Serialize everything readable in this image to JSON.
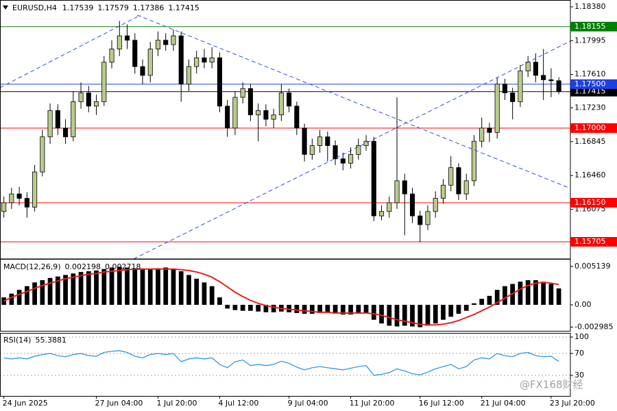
{
  "chart_data": [
    {
      "type": "candlestick",
      "title": "EURUSD,H4",
      "open": [
        1.1605,
        1.1615,
        1.1625,
        1.162,
        1.161,
        1.165,
        1.169,
        1.172,
        1.17,
        1.169,
        1.173,
        1.174,
        1.1725,
        1.173,
        1.1775,
        1.179,
        1.1805,
        1.18,
        1.177,
        1.176,
        1.179,
        1.18,
        1.1795,
        1.1805,
        1.175,
        1.177,
        1.178,
        1.1775,
        1.178,
        1.1725,
        1.17,
        1.1735,
        1.1745,
        1.1715,
        1.172,
        1.171,
        1.1715,
        1.174,
        1.1725,
        1.17,
        1.167,
        1.168,
        1.169,
        1.168,
        1.1665,
        1.166,
        1.167,
        1.168,
        1.1685,
        1.16,
        1.1605,
        1.1615,
        1.164,
        1.1625,
        1.16,
        1.159,
        1.1605,
        1.162,
        1.1635,
        1.1655,
        1.1625,
        1.164,
        1.1685,
        1.17,
        1.1695,
        1.175,
        1.174,
        1.173,
        1.1765,
        1.1775,
        1.176,
        1.1755,
        1.17539
      ],
      "high": [
        1.1622,
        1.1632,
        1.1633,
        1.1627,
        1.1658,
        1.1698,
        1.1728,
        1.1727,
        1.171,
        1.1742,
        1.1752,
        1.1748,
        1.1738,
        1.1782,
        1.18,
        1.1822,
        1.1818,
        1.1808,
        1.1778,
        1.1798,
        1.181,
        1.1808,
        1.1812,
        1.181,
        1.1778,
        1.1788,
        1.179,
        1.1792,
        1.1786,
        1.1732,
        1.1742,
        1.1752,
        1.175,
        1.1728,
        1.1727,
        1.1722,
        1.175,
        1.1745,
        1.173,
        1.1705,
        1.1688,
        1.1698,
        1.1696,
        1.1686,
        1.1672,
        1.1678,
        1.1688,
        1.1692,
        1.169,
        1.1612,
        1.1622,
        1.1735,
        1.1648,
        1.1632,
        1.1606,
        1.1612,
        1.1628,
        1.1642,
        1.1668,
        1.166,
        1.1648,
        1.1692,
        1.1712,
        1.1706,
        1.1758,
        1.1756,
        1.1746,
        1.1772,
        1.1782,
        1.1785,
        1.179,
        1.1768,
        1.17579
      ],
      "low": [
        1.1598,
        1.1608,
        1.1612,
        1.1598,
        1.1605,
        1.1645,
        1.1682,
        1.1692,
        1.1682,
        1.1685,
        1.1722,
        1.1718,
        1.1715,
        1.1725,
        1.1768,
        1.1782,
        1.179,
        1.1762,
        1.175,
        1.1752,
        1.1782,
        1.1788,
        1.1788,
        1.173,
        1.1742,
        1.1762,
        1.1768,
        1.1768,
        1.1718,
        1.169,
        1.1692,
        1.1728,
        1.1708,
        1.1685,
        1.1702,
        1.17,
        1.1708,
        1.1718,
        1.1692,
        1.1662,
        1.1664,
        1.1672,
        1.1662,
        1.1658,
        1.1652,
        1.1654,
        1.1664,
        1.1674,
        1.1594,
        1.1595,
        1.1598,
        1.1608,
        1.1578,
        1.1592,
        1.157,
        1.1584,
        1.1598,
        1.1614,
        1.1628,
        1.1618,
        1.1618,
        1.1634,
        1.1678,
        1.1684,
        1.1688,
        1.1732,
        1.171,
        1.1724,
        1.1758,
        1.1752,
        1.1732,
        1.1735,
        1.17386
      ],
      "close": [
        1.1615,
        1.1625,
        1.162,
        1.161,
        1.165,
        1.169,
        1.172,
        1.17,
        1.169,
        1.173,
        1.174,
        1.1725,
        1.173,
        1.1775,
        1.179,
        1.1805,
        1.18,
        1.177,
        1.176,
        1.179,
        1.18,
        1.1795,
        1.1805,
        1.175,
        1.177,
        1.178,
        1.1775,
        1.178,
        1.1725,
        1.17,
        1.1735,
        1.1745,
        1.1715,
        1.172,
        1.171,
        1.1715,
        1.174,
        1.1725,
        1.17,
        1.167,
        1.168,
        1.169,
        1.168,
        1.1665,
        1.166,
        1.167,
        1.168,
        1.1685,
        1.16,
        1.1605,
        1.1615,
        1.164,
        1.1625,
        1.16,
        1.159,
        1.1605,
        1.162,
        1.1635,
        1.1655,
        1.1625,
        1.164,
        1.1685,
        1.17,
        1.1695,
        1.175,
        1.174,
        1.173,
        1.1765,
        1.1775,
        1.176,
        1.1755,
        1.17539,
        1.17415
      ],
      "up_color": "#b9cc8c",
      "down_color": "#000000",
      "xlim": [
        -0.5,
        73.5
      ],
      "xticks": [
        {
          "value": 0,
          "label": "24 Jun 2025"
        },
        {
          "value": 12,
          "label": "27 Jun 04:00"
        },
        {
          "value": 20,
          "label": "1 Jul 20:00"
        },
        {
          "value": 28,
          "label": "4 Jul 12:00"
        },
        {
          "value": 37,
          "label": "9 Jul 04:00"
        },
        {
          "value": 45,
          "label": "11 Jul 20:00"
        },
        {
          "value": 54,
          "label": "16 Jul 12:00"
        },
        {
          "value": 62,
          "label": "21 Jul 04:00"
        },
        {
          "value": 71,
          "label": "23 Jul 20:00"
        }
      ],
      "ylim": [
        1.1551,
        1.18458
      ],
      "yticks": [
        {
          "value": 1.1838,
          "label": "1.18380"
        },
        1.17995,
        {
          "value": 1.1761,
          "label": "1.17610"
        },
        {
          "value": 1.1723,
          "label": "1.17230"
        },
        1.16845,
        {
          "value": 1.1646,
          "label": "1.16460"
        },
        1.16075
      ],
      "levels": [
        {
          "value": 1.17415,
          "label": "1.17415",
          "color": "#000000"
        },
        {
          "value": 1.18155,
          "label": "1.18155",
          "color": "#008000"
        },
        {
          "value": 1.175,
          "label": "1.17500",
          "color": "#1f3fe0"
        },
        {
          "value": 1.17,
          "label": "1.17000",
          "color": "#ff0000"
        },
        {
          "value": 1.1615,
          "label": "1.16150",
          "color": "#ff0000"
        },
        {
          "value": 1.15705,
          "label": "1.15705",
          "color": "#ff0000"
        }
      ]
    },
    {
      "type": "macd",
      "title": "MACD(12,26,9)",
      "values": [
        0.001,
        0.0015,
        0.002,
        0.0025,
        0.003,
        0.0033,
        0.0036,
        0.0038,
        0.004,
        0.0042,
        0.0044,
        0.0045,
        0.0046,
        0.0048,
        0.005,
        0.0051,
        0.005,
        0.0049,
        0.0048,
        0.0048,
        0.0049,
        0.005,
        0.0048,
        0.0045,
        0.004,
        0.0035,
        0.003,
        0.0025,
        0.001,
        -0.0005,
        -0.0007,
        -0.0008,
        -0.0008,
        -0.0009,
        -0.001,
        -0.001,
        -0.0009,
        -0.001,
        -0.0011,
        -0.0012,
        -0.0012,
        -0.0011,
        -0.0011,
        -0.0012,
        -0.0013,
        -0.0013,
        -0.0012,
        -0.0011,
        -0.002,
        -0.0025,
        -0.0028,
        -0.0029,
        -0.0028,
        -0.0029,
        -0.003,
        -0.0028,
        -0.0025,
        -0.002,
        -0.0016,
        -0.0012,
        -0.0008,
        0.0002,
        0.0008,
        0.0012,
        0.002,
        0.0025,
        0.0028,
        0.0031,
        0.0033,
        0.0033,
        0.0031,
        0.0028,
        0.002198
      ],
      "signal_values": [
        0.0005,
        0.001,
        0.0014,
        0.0018,
        0.0022,
        0.0026,
        0.0029,
        0.0032,
        0.0035,
        0.0037,
        0.0039,
        0.0041,
        0.0042,
        0.0044,
        0.0045,
        0.0046,
        0.0047,
        0.0048,
        0.0048,
        0.0048,
        0.0048,
        0.0048,
        0.0048,
        0.0047,
        0.0046,
        0.0044,
        0.0041,
        0.0037,
        0.0031,
        0.0024,
        0.0017,
        0.0011,
        0.0006,
        0.0002,
        -0.0001,
        -0.0003,
        -0.0005,
        -0.0006,
        -0.0007,
        -0.0008,
        -0.0009,
        -0.001,
        -0.001,
        -0.0011,
        -0.0011,
        -0.0011,
        -0.0011,
        -0.0011,
        -0.0012,
        -0.0014,
        -0.0017,
        -0.002,
        -0.0022,
        -0.0024,
        -0.0026,
        -0.0027,
        -0.0027,
        -0.0026,
        -0.0024,
        -0.0021,
        -0.0017,
        -0.0013,
        -0.0008,
        -0.0003,
        0.0003,
        0.0009,
        0.0015,
        0.0021,
        0.0026,
        0.0029,
        0.003,
        0.0029,
        0.002718
      ],
      "color": "#000000",
      "signal_color": "#e8201a",
      "ylim": [
        -0.00349,
        0.00615
      ],
      "yticks": [
        0.005139,
        {
          "value": 0,
          "label": "0.00"
        },
        -0.002985
      ]
    },
    {
      "type": "line",
      "title": "RSI(14)",
      "values": [
        62,
        60,
        62,
        60,
        65,
        68,
        70,
        66,
        64,
        68,
        70,
        66,
        65,
        72,
        74,
        75,
        72,
        65,
        62,
        68,
        70,
        68,
        70,
        55,
        60,
        62,
        60,
        62,
        50,
        44,
        55,
        58,
        48,
        50,
        48,
        50,
        56,
        52,
        45,
        40,
        44,
        46,
        44,
        42,
        40,
        43,
        46,
        48,
        30,
        32,
        35,
        42,
        38,
        33,
        31,
        36,
        42,
        46,
        50,
        42,
        46,
        58,
        62,
        60,
        70,
        66,
        64,
        70,
        72,
        66,
        64,
        65,
        55.3881
      ],
      "color": "#1e8fe6",
      "ylim": [
        -7.5,
        107.5
      ],
      "yticks": [
        100,
        70,
        30
      ]
    }
  ],
  "watermark": "@FX168财经"
}
